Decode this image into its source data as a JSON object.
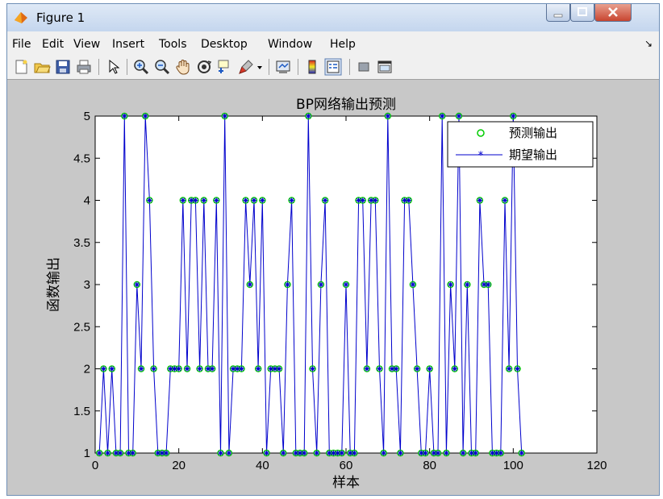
{
  "window": {
    "title": "Figure 1"
  },
  "menubar": {
    "items": [
      "File",
      "Edit",
      "View",
      "Insert",
      "Tools",
      "Desktop",
      "Window",
      "Help"
    ],
    "overflow_glyph": "↘"
  },
  "toolbar": {
    "icons": [
      "new-figure-icon",
      "open-file-icon",
      "save-icon",
      "print-icon",
      "edit-plot-arrow-icon",
      "zoom-in-icon",
      "zoom-out-icon",
      "pan-hand-icon",
      "rotate-3d-icon",
      "data-cursor-icon",
      "brush-icon",
      "brush-dropdown-icon",
      "link-plot-icon",
      "insert-colorbar-icon",
      "insert-legend-icon",
      "hide-plot-tools-icon",
      "show-plot-tools-icon"
    ]
  },
  "chart_data": {
    "type": "line",
    "title": "BP网络输出预测",
    "xlabel": "样本",
    "ylabel": "函数输出",
    "xlim": [
      0,
      120
    ],
    "ylim": [
      1,
      5
    ],
    "xticks": [
      "0",
      "20",
      "40",
      "60",
      "80",
      "100",
      "120"
    ],
    "yticks": [
      "1",
      "1.5",
      "2",
      "2.5",
      "3",
      "3.5",
      "4",
      "4.5",
      "5"
    ],
    "grid": false,
    "legend_position": "top-right",
    "x": [
      1,
      2,
      3,
      4,
      5,
      6,
      7,
      8,
      9,
      10,
      11,
      12,
      13,
      14,
      15,
      16,
      17,
      18,
      19,
      20,
      21,
      22,
      23,
      24,
      25,
      26,
      27,
      28,
      29,
      30,
      31,
      32,
      33,
      34,
      35,
      36,
      37,
      38,
      39,
      40,
      41,
      42,
      43,
      44,
      45,
      46,
      47,
      48,
      49,
      50,
      51,
      52,
      53,
      54,
      55,
      56,
      57,
      58,
      59,
      60,
      61,
      62,
      63,
      64,
      65,
      66,
      67,
      68,
      69,
      70,
      71,
      72,
      73,
      74,
      75,
      76,
      77,
      78,
      79,
      80,
      81,
      82,
      83,
      84,
      85,
      86,
      87,
      88,
      89,
      90,
      91,
      92,
      93,
      94,
      95,
      96,
      97,
      98,
      99,
      100,
      101,
      102
    ],
    "series": [
      {
        "name": "预测输出",
        "marker": "circle",
        "color": "#00cc00",
        "values": [
          1,
          2,
          1,
          2,
          1,
          1,
          5,
          1,
          1,
          3,
          2,
          5,
          4,
          2,
          1,
          1,
          1,
          2,
          2,
          2,
          4,
          2,
          4,
          4,
          2,
          4,
          2,
          2,
          4,
          1,
          5,
          1,
          2,
          2,
          2,
          4,
          3,
          4,
          2,
          4,
          1,
          2,
          2,
          2,
          1,
          3,
          4,
          1,
          1,
          1,
          5,
          2,
          1,
          3,
          4,
          1,
          1,
          1,
          1,
          3,
          1,
          1,
          4,
          4,
          2,
          4,
          4,
          2,
          1,
          5,
          2,
          2,
          1,
          4,
          4,
          3,
          2,
          1,
          1,
          2,
          1,
          1,
          5,
          1,
          3,
          2,
          5,
          1,
          3,
          1,
          1,
          4,
          3,
          3,
          1,
          1,
          1,
          4,
          2,
          5,
          2,
          1
        ]
      },
      {
        "name": "期望输出",
        "marker": "star",
        "color": "#0000cc",
        "values": [
          1,
          2,
          1,
          2,
          1,
          1,
          5,
          1,
          1,
          3,
          2,
          5,
          4,
          2,
          1,
          1,
          1,
          2,
          2,
          2,
          4,
          2,
          4,
          4,
          2,
          4,
          2,
          2,
          4,
          1,
          5,
          1,
          2,
          2,
          2,
          4,
          3,
          4,
          2,
          4,
          1,
          2,
          2,
          2,
          1,
          3,
          4,
          1,
          1,
          1,
          5,
          2,
          1,
          3,
          4,
          1,
          1,
          1,
          1,
          3,
          1,
          1,
          4,
          4,
          2,
          4,
          4,
          2,
          1,
          5,
          2,
          2,
          1,
          4,
          4,
          3,
          2,
          1,
          1,
          2,
          1,
          1,
          5,
          1,
          3,
          2,
          5,
          1,
          3,
          1,
          1,
          4,
          3,
          3,
          1,
          1,
          1,
          4,
          2,
          5,
          2,
          1
        ]
      }
    ]
  }
}
